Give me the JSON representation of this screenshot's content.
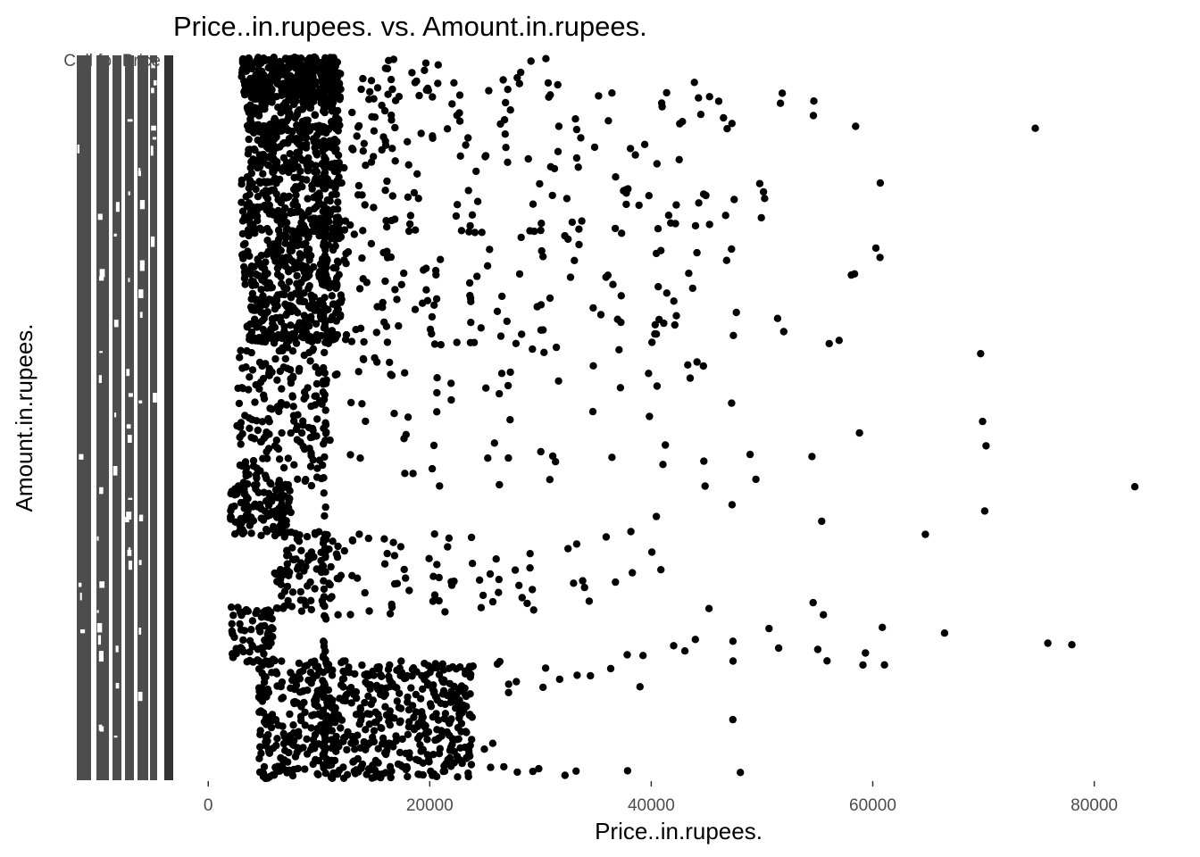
{
  "chart_data": {
    "type": "scatter",
    "title": "Price..in.rupees. vs. Amount.in.rupees.",
    "xlabel": "Price..in.rupees.",
    "ylabel": "Amount.in.rupees.",
    "xlim": [
      -3000,
      86000
    ],
    "x_ticks": [
      0,
      20000,
      40000,
      60000,
      80000
    ],
    "x_tick_labels": [
      "0",
      "20000",
      "40000",
      "60000",
      "80000"
    ],
    "y_axis": "categorical; hundreds of overlapping tick labels, illegible except the top label",
    "y_top_label": "Call for Price",
    "grid": false,
    "legend": "none",
    "point_color": "#000000",
    "clusters": [
      {
        "band": 1,
        "x": [
          3000,
          12000
        ],
        "dense": 300,
        "tail": [
          [
            16000,
            7
          ],
          [
            18500,
            7
          ],
          [
            21000,
            6
          ],
          [
            28000,
            4
          ],
          [
            31500,
            4
          ]
        ]
      },
      {
        "band": 2,
        "x": [
          3500,
          12000
        ],
        "dense": 200,
        "tail": [
          [
            14000,
            9
          ],
          [
            16000,
            8
          ],
          [
            22000,
            6
          ],
          [
            26000,
            7
          ],
          [
            32000,
            3
          ],
          [
            36500,
            3
          ],
          [
            42000,
            5
          ],
          [
            44000,
            4
          ],
          [
            46000,
            4
          ],
          [
            51500,
            2
          ],
          [
            54500,
            2
          ],
          [
            59000,
            1
          ],
          [
            75000,
            1
          ]
        ]
      },
      {
        "band": 3,
        "x": [
          3500,
          12000
        ],
        "dense": 200,
        "tail": [
          [
            13500,
            10
          ],
          [
            16000,
            8
          ],
          [
            19000,
            6
          ],
          [
            24000,
            6
          ],
          [
            28000,
            4
          ],
          [
            32000,
            4
          ],
          [
            34500,
            4
          ],
          [
            39000,
            3
          ],
          [
            41500,
            2
          ]
        ]
      },
      {
        "band": 4,
        "x": [
          3000,
          12000
        ],
        "dense": 190,
        "tail": [
          [
            13000,
            10
          ],
          [
            16000,
            8
          ],
          [
            19000,
            7
          ],
          [
            23500,
            8
          ],
          [
            30000,
            5
          ],
          [
            33500,
            4
          ],
          [
            36500,
            5
          ],
          [
            38500,
            3
          ],
          [
            41000,
            4
          ],
          [
            44000,
            4
          ],
          [
            46500,
            3
          ],
          [
            49000,
            3
          ],
          [
            51000,
            1
          ],
          [
            60000,
            1
          ]
        ]
      },
      {
        "band": 5,
        "x": [
          3000,
          12000
        ],
        "dense": 200,
        "tail": [
          [
            13500,
            10
          ],
          [
            16500,
            8
          ],
          [
            20500,
            6
          ],
          [
            24500,
            6
          ],
          [
            29000,
            6
          ],
          [
            33000,
            5
          ],
          [
            36500,
            5
          ],
          [
            40500,
            4
          ],
          [
            43500,
            3
          ],
          [
            46000,
            2
          ],
          [
            58500,
            2
          ],
          [
            59500,
            2
          ]
        ]
      },
      {
        "band": 6,
        "x": [
          3500,
          12000
        ],
        "dense": 180,
        "tail": [
          [
            13000,
            10
          ],
          [
            16000,
            9
          ],
          [
            19500,
            8
          ],
          [
            23500,
            8
          ],
          [
            27000,
            6
          ],
          [
            31000,
            5
          ],
          [
            36000,
            5
          ],
          [
            39500,
            5
          ],
          [
            42000,
            5
          ],
          [
            48000,
            2
          ],
          [
            52500,
            2
          ],
          [
            56000,
            2
          ]
        ]
      },
      {
        "band": 7,
        "x": [
          2500,
          10000
        ],
        "dense": 160,
        "tail": [
          [
            11000,
            12
          ],
          [
            14000,
            10
          ],
          [
            17500,
            10
          ],
          [
            21500,
            10
          ],
          [
            26000,
            10
          ],
          [
            30500,
            8
          ],
          [
            36000,
            5
          ],
          [
            40000,
            5
          ],
          [
            44500,
            5
          ],
          [
            48500,
            3
          ],
          [
            54000,
            1
          ],
          [
            58500,
            1
          ],
          [
            69500,
            2
          ],
          [
            70000,
            1
          ]
        ]
      },
      {
        "band": 8,
        "x": [
          2000,
          7500
        ],
        "dense": 130,
        "tail": [
          [
            40000,
            1
          ],
          [
            45000,
            1
          ],
          [
            48000,
            1
          ],
          [
            55000,
            1
          ],
          [
            65000,
            1
          ],
          [
            69500,
            1
          ],
          [
            84500,
            1
          ]
        ]
      },
      {
        "band": 9,
        "x": [
          6000,
          12000
        ],
        "dense": 90,
        "tail": [
          [
            13500,
            10
          ],
          [
            17000,
            14
          ],
          [
            21000,
            14
          ],
          [
            25000,
            10
          ],
          [
            29000,
            8
          ],
          [
            33500,
            6
          ],
          [
            37000,
            4
          ],
          [
            40000,
            2
          ],
          [
            54500,
            1
          ]
        ]
      },
      {
        "band": 10,
        "x": [
          2000,
          6000
        ],
        "dense": 70,
        "tail": [
          [
            39000,
            2
          ],
          [
            42000,
            2
          ],
          [
            44500,
            2
          ],
          [
            47500,
            2
          ],
          [
            51000,
            2
          ],
          [
            56000,
            3
          ],
          [
            59000,
            2
          ],
          [
            62000,
            2
          ],
          [
            67500,
            1
          ],
          [
            76500,
            1
          ],
          [
            77000,
            1
          ]
        ]
      },
      {
        "band": 11,
        "x": [
          4500,
          24000
        ],
        "dense": 600,
        "tail": [
          [
            26000,
            8
          ],
          [
            29000,
            4
          ],
          [
            31500,
            4
          ],
          [
            34000,
            3
          ],
          [
            37000,
            2
          ],
          [
            40000,
            1
          ],
          [
            47500,
            1
          ],
          [
            48500,
            1
          ]
        ]
      }
    ]
  }
}
